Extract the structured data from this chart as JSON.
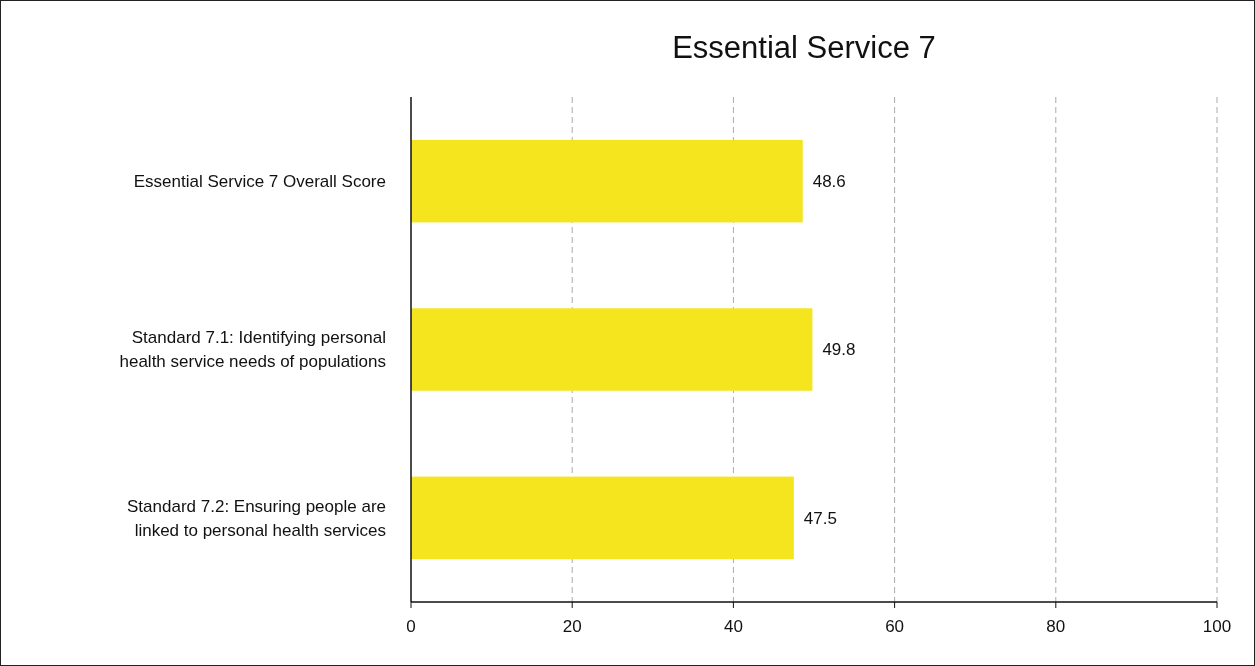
{
  "chart_data": {
    "type": "bar",
    "orientation": "horizontal",
    "title": "Essential Service 7",
    "categories": [
      "Essential Service 7 Overall Score",
      "Standard 7.1: Identifying personal health service needs of populations",
      "Standard 7.2: Ensuring people are linked to personal health services"
    ],
    "values": [
      48.6,
      49.8,
      47.5
    ],
    "color": "#f5e51e",
    "data_labels": true,
    "xlim": [
      0,
      100
    ],
    "xticks": [
      0,
      20,
      40,
      60,
      80,
      100
    ],
    "grid": "x"
  }
}
